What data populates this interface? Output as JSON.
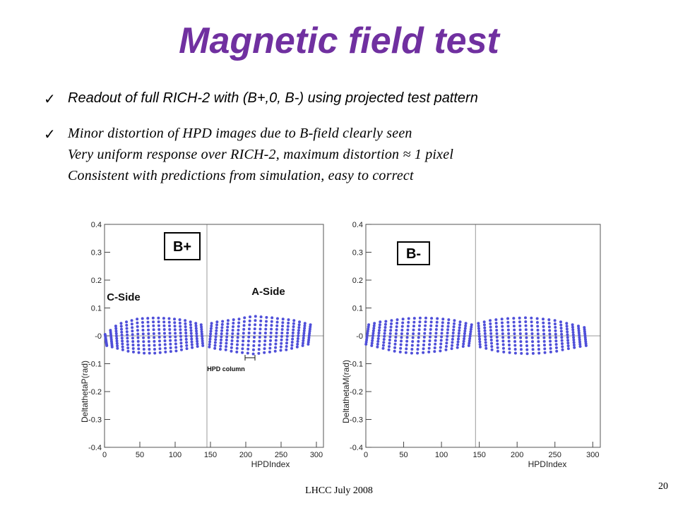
{
  "slide": {
    "title": "Magnetic field test",
    "bullet1": "Readout of full RICH-2 with (B+,0, B-) using projected test pattern",
    "bullet2_lines": [
      "Minor distortion of HPD images due to B-field clearly seen",
      "Very uniform response over RICH-2, maximum distortion ≈ 1 pixel",
      "Consistent with predictions from simulation, easy to correct"
    ],
    "check_mark": "✓",
    "footer": "LHCC July 2008",
    "page_number": "20"
  },
  "colors": {
    "title": "#7030a0",
    "points": "#4f4fd9"
  },
  "chart_data": [
    {
      "type": "scatter",
      "panel_label": "B+",
      "annotations": [
        "C-Side",
        "A-Side",
        "HPD column"
      ],
      "xlabel": "HPDIndex",
      "ylabel": "DeltathetaP(rad)",
      "xlim": [
        0,
        310
      ],
      "ylim": [
        -0.4,
        0.4
      ],
      "xticks": [
        "0",
        "50",
        "100",
        "150",
        "200",
        "250",
        "300"
      ],
      "yticks": [
        "0.4",
        "0.3",
        "0.2",
        "0.1",
        "-0",
        "-0.1",
        "-0.2",
        "-0.3",
        "-0.4"
      ],
      "reference_lines": {
        "x": 145,
        "y": 0
      },
      "columns_left": {
        "x_start": 2,
        "x_end": 138,
        "count": 19,
        "tilt": 0.03,
        "top": [
          0.005,
          0.02,
          0.035,
          0.045,
          0.05,
          0.055,
          0.06,
          0.062,
          0.063,
          0.064,
          0.064,
          0.063,
          0.062,
          0.06,
          0.058,
          0.055,
          0.05,
          0.045,
          0.04
        ],
        "bottom": [
          -0.035,
          -0.04,
          -0.045,
          -0.05,
          -0.055,
          -0.058,
          -0.06,
          -0.062,
          -0.062,
          -0.062,
          -0.06,
          -0.058,
          -0.056,
          -0.054,
          -0.05,
          -0.046,
          -0.042,
          -0.038,
          -0.035
        ]
      },
      "columns_right": {
        "x_start": 150,
        "x_end": 290,
        "count": 19,
        "tilt": -0.04,
        "top": [
          0.045,
          0.05,
          0.052,
          0.055,
          0.058,
          0.06,
          0.065,
          0.068,
          0.07,
          0.068,
          0.066,
          0.065,
          0.062,
          0.06,
          0.058,
          0.055,
          0.05,
          0.045,
          0.04
        ],
        "bottom": [
          -0.04,
          -0.045,
          -0.048,
          -0.05,
          -0.055,
          -0.058,
          -0.06,
          -0.062,
          -0.065,
          -0.063,
          -0.06,
          -0.058,
          -0.055,
          -0.052,
          -0.05,
          -0.045,
          -0.04,
          -0.035,
          -0.03
        ]
      }
    },
    {
      "type": "scatter",
      "panel_label": "B-",
      "annotations": [],
      "xlabel": "HPDIndex",
      "ylabel": "DeltathetaM(rad)",
      "xlim": [
        0,
        310
      ],
      "ylim": [
        -0.4,
        0.4
      ],
      "xticks": [
        "0",
        "50",
        "100",
        "150",
        "200",
        "250",
        "300"
      ],
      "yticks": [
        "0.4",
        "0.3",
        "0.2",
        "0.1",
        "-0",
        "-0.1",
        "-0.2",
        "-0.3",
        "-0.4"
      ],
      "reference_lines": {
        "x": 145,
        "y": 0
      },
      "columns_left": {
        "x_start": 2,
        "x_end": 138,
        "count": 19,
        "tilt": -0.045,
        "top": [
          0.04,
          0.045,
          0.05,
          0.052,
          0.055,
          0.058,
          0.06,
          0.062,
          0.063,
          0.064,
          0.064,
          0.063,
          0.062,
          0.06,
          0.058,
          0.055,
          0.05,
          0.045,
          0.04
        ],
        "bottom": [
          -0.03,
          -0.035,
          -0.04,
          -0.045,
          -0.05,
          -0.055,
          -0.058,
          -0.06,
          -0.062,
          -0.062,
          -0.06,
          -0.058,
          -0.056,
          -0.054,
          -0.05,
          -0.046,
          -0.042,
          -0.038,
          -0.035
        ]
      },
      "columns_right": {
        "x_start": 150,
        "x_end": 290,
        "count": 19,
        "tilt": 0.03,
        "top": [
          0.045,
          0.05,
          0.055,
          0.058,
          0.06,
          0.062,
          0.063,
          0.064,
          0.065,
          0.064,
          0.062,
          0.06,
          0.058,
          0.055,
          0.05,
          0.045,
          0.04,
          0.035,
          0.03
        ],
        "bottom": [
          -0.04,
          -0.045,
          -0.05,
          -0.055,
          -0.058,
          -0.06,
          -0.062,
          -0.063,
          -0.064,
          -0.063,
          -0.062,
          -0.06,
          -0.058,
          -0.055,
          -0.05,
          -0.046,
          -0.042,
          -0.038,
          -0.035
        ]
      }
    }
  ]
}
